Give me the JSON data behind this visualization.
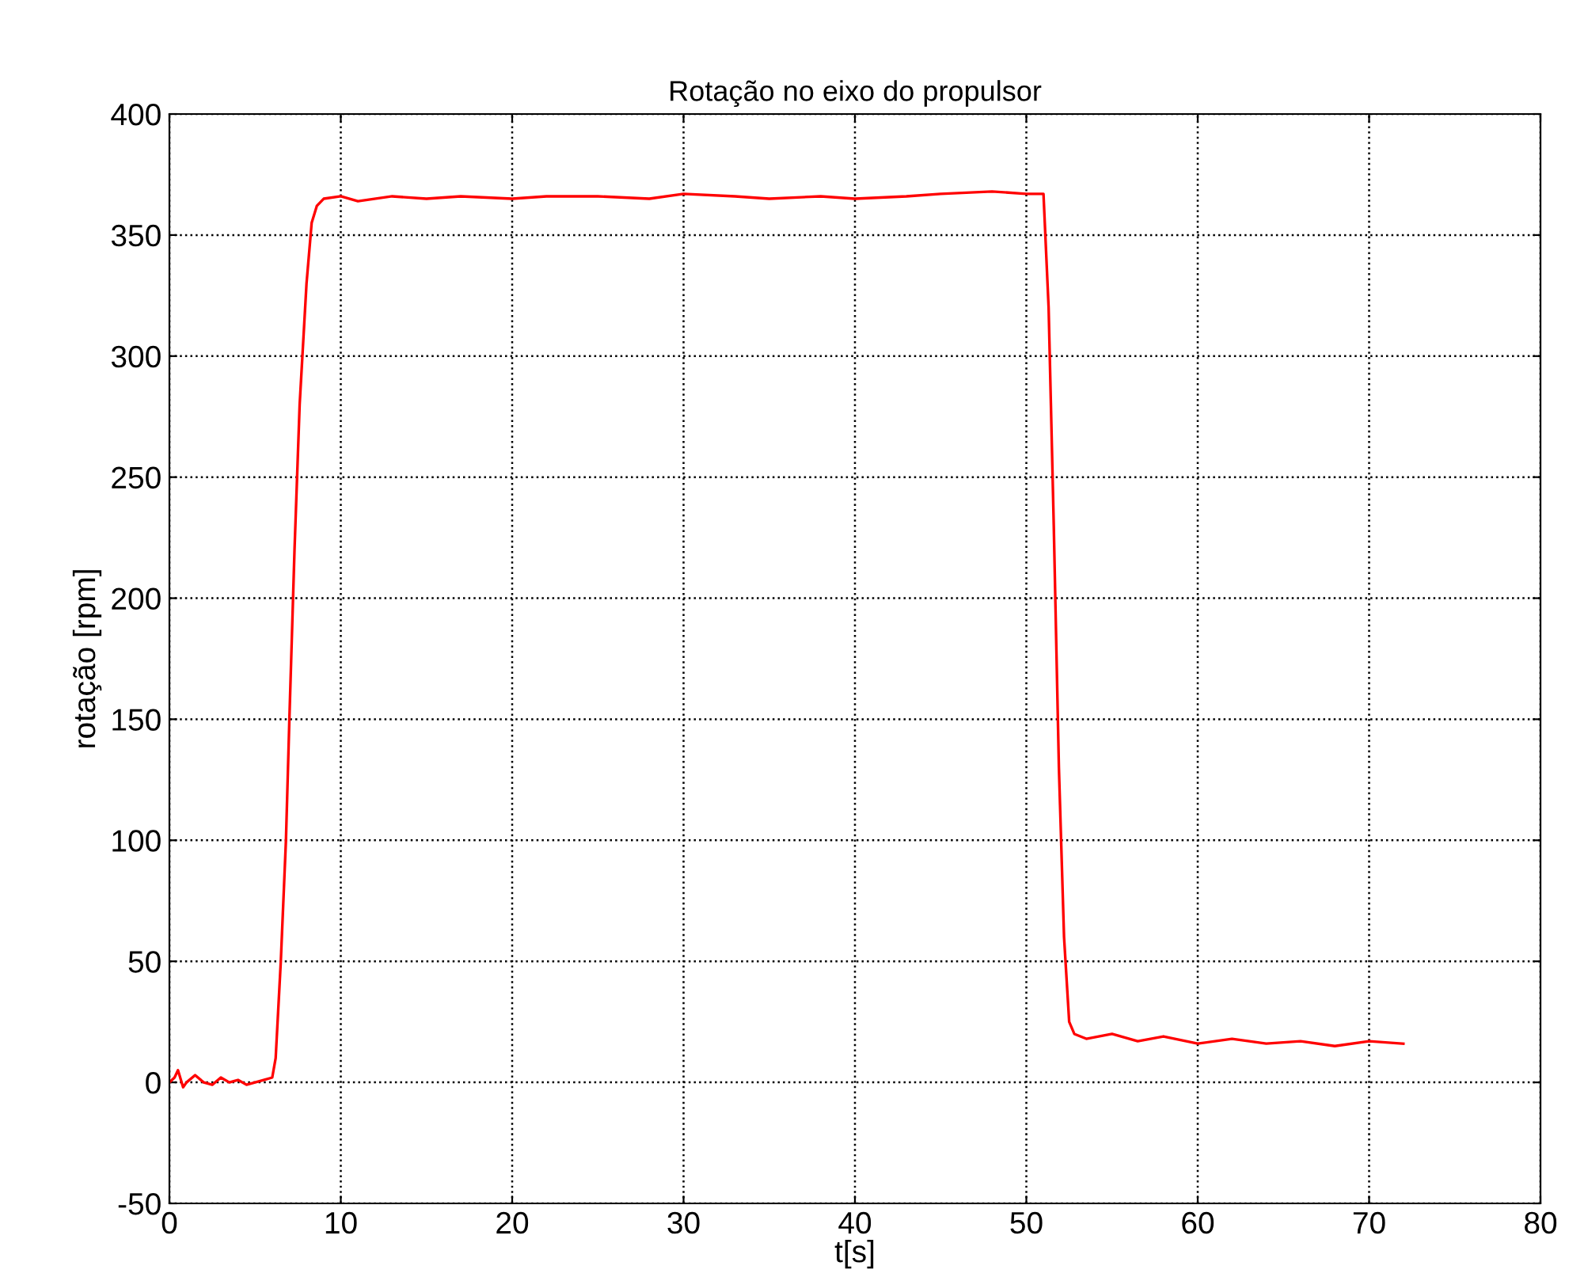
{
  "chart_data": {
    "type": "line",
    "title": "Rotação no eixo do propulsor",
    "xlabel": "t[s]",
    "ylabel": "rotação [rpm]",
    "xlim": [
      0,
      80
    ],
    "ylim": [
      -50,
      400
    ],
    "xticks": [
      0,
      10,
      20,
      30,
      40,
      50,
      60,
      70,
      80
    ],
    "yticks": [
      -50,
      0,
      50,
      100,
      150,
      200,
      250,
      300,
      350,
      400
    ],
    "grid": true,
    "line_style": "solid",
    "marker": "none",
    "series": [
      {
        "color": "#ff0000",
        "x": [
          0,
          0.3,
          0.5,
          0.8,
          1,
          1.5,
          2,
          2.5,
          3,
          3.5,
          4,
          4.5,
          5,
          5.5,
          6,
          6.2,
          6.5,
          6.8,
          7,
          7.3,
          7.6,
          8,
          8.3,
          8.6,
          9,
          10,
          11,
          13,
          15,
          17,
          20,
          22,
          25,
          28,
          30,
          33,
          35,
          38,
          40,
          43,
          45,
          48,
          50,
          51,
          51.3,
          51.6,
          51.9,
          52.2,
          52.5,
          52.8,
          53.5,
          55,
          56.5,
          58,
          60,
          62,
          64,
          66,
          68,
          70,
          72
        ],
        "values": [
          0,
          2,
          5,
          -2,
          0,
          3,
          0,
          -1,
          2,
          0,
          1,
          -1,
          0,
          1,
          2,
          10,
          50,
          100,
          150,
          220,
          280,
          330,
          355,
          362,
          365,
          366,
          364,
          366,
          365,
          366,
          365,
          366,
          366,
          365,
          367,
          366,
          365,
          366,
          365,
          366,
          367,
          368,
          367,
          367,
          320,
          230,
          130,
          60,
          25,
          20,
          18,
          20,
          17,
          19,
          16,
          18,
          16,
          17,
          15,
          17,
          16
        ]
      }
    ]
  }
}
